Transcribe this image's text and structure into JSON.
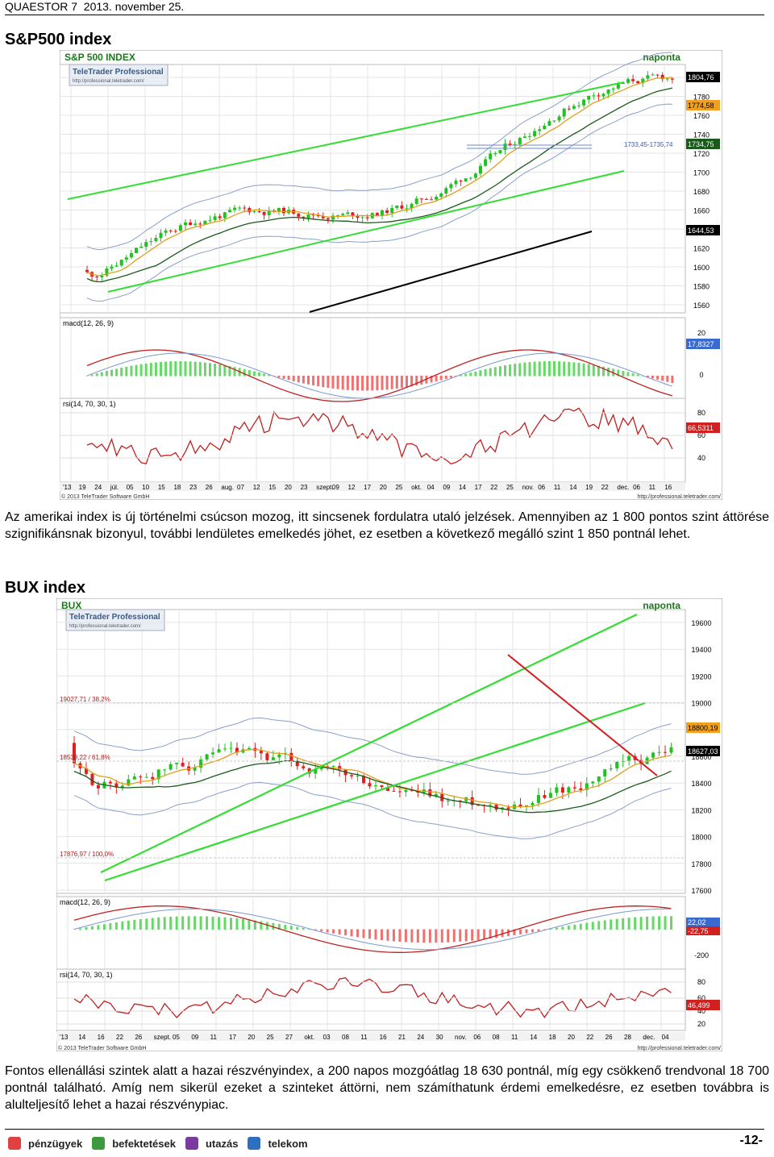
{
  "header": {
    "title": "QUAESTOR 7",
    "date": "2013. november 25."
  },
  "sp500": {
    "heading": "S&P500 index",
    "chart": {
      "title": "S&P 500 INDEX",
      "period": "naponta",
      "brand": "TeleTrader Professional",
      "brand_url": "http://professional.teletrader.com/",
      "copyright": "© 2013 TeleTrader Software GmbH",
      "site": "http://professional.teletrader.com/",
      "range_label": "1733,45-1735,74",
      "yaxis": [
        "1800",
        "1780",
        "1760",
        "1740",
        "1720",
        "1700",
        "1680",
        "1660",
        "1640",
        "1620",
        "1600",
        "1580",
        "1560"
      ],
      "price_tags": [
        "1804,76",
        "1774,58",
        "1734,75",
        "1644,53"
      ],
      "macd_label": "macd(12, 26, 9)",
      "macd_axis": [
        "20",
        "0"
      ],
      "macd_tag": "17,8327",
      "rsi_label": "rsi(14, 70, 30, 1)",
      "rsi_axis": [
        "80",
        "60",
        "40"
      ],
      "rsi_tag": "66,5311",
      "xlabels": [
        "'13",
        "19",
        "24",
        "júl.",
        "05",
        "10",
        "15",
        "18",
        "23",
        "26",
        "aug.",
        "07",
        "12",
        "15",
        "20",
        "23",
        "szept.",
        "09",
        "12",
        "17",
        "20",
        "25",
        "okt.",
        "04",
        "09",
        "14",
        "17",
        "22",
        "25",
        "nov.",
        "06",
        "11",
        "14",
        "19",
        "22",
        "dec.",
        "06",
        "11",
        "16"
      ]
    },
    "paragraph": "Az amerikai index is új történelmi csúcson mozog, itt sincsenek fordulatra utaló jelzések. Amennyiben az 1 800 pontos szint áttörése szignifikánsnak bizonyul, további lendületes emelkedés jöhet, ez esetben a következő megálló szint 1 850 pontnál lehet."
  },
  "bux": {
    "heading": "BUX index",
    "chart": {
      "title": "BUX",
      "period": "naponta",
      "brand": "TeleTrader Professional",
      "brand_url": "http://professional.teletrader.com/",
      "copyright": "© 2013 TeleTrader Software GmbH",
      "site": "http://professional.teletrader.com/",
      "yaxis": [
        "19600",
        "19400",
        "19200",
        "19000",
        "18800",
        "18600",
        "18400",
        "18200",
        "18000",
        "17800",
        "17600"
      ],
      "fib": [
        "19027,71 / 38,2%",
        "18538,22 / 61,8%",
        "17876,97 / 100,0%"
      ],
      "price_tags": [
        "18800,19",
        "18627,03"
      ],
      "macd_label": "macd(12, 26, 9)",
      "macd_axis": [
        "0",
        "-200"
      ],
      "macd_tags": [
        "22,02",
        "-22,75"
      ],
      "rsi_label": "rsi(14, 70, 30, 1)",
      "rsi_axis": [
        "80",
        "60",
        "40",
        "20"
      ],
      "rsi_tag": "46,499",
      "xlabels": [
        "'13",
        "14",
        "16",
        "22",
        "26",
        "szept.",
        "05",
        "09",
        "11",
        "17",
        "20",
        "25",
        "27",
        "okt.",
        "03",
        "08",
        "11",
        "16",
        "21",
        "24",
        "30",
        "nov.",
        "06",
        "08",
        "11",
        "14",
        "18",
        "20",
        "22",
        "26",
        "28",
        "dec.",
        "04"
      ]
    },
    "paragraph": "Fontos ellenállási szintek alatt a hazai részvényindex, a 200 napos mozgóátlag 18 630 pontnál, míg egy csökkenő trendvonal 18 700 pontnál található. Amíg nem sikerül ezeket a szinteket áttörni, nem számíthatunk érdemi emelkedésre, ez esetben továbbra is alulteljesítő lehet a hazai részvénypiac."
  },
  "footer": {
    "links": [
      "pénzügyek",
      "befektetések",
      "utazás",
      "telekom"
    ],
    "page": "-12-"
  }
}
